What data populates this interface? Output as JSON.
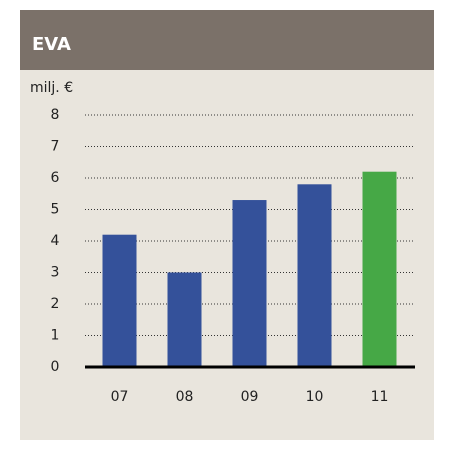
{
  "chart_data": {
    "type": "bar",
    "title": "EVA",
    "y_label": "milj. €",
    "categories": [
      "07",
      "08",
      "09",
      "10",
      "11"
    ],
    "values": [
      4.2,
      3.0,
      5.3,
      5.8,
      6.2
    ],
    "colors": [
      "#34519a",
      "#34519a",
      "#34519a",
      "#34519a",
      "#46a846"
    ],
    "ylim": [
      0,
      8
    ],
    "yticks": [
      0,
      1,
      2,
      3,
      4,
      5,
      6,
      7,
      8
    ],
    "grid": true
  }
}
